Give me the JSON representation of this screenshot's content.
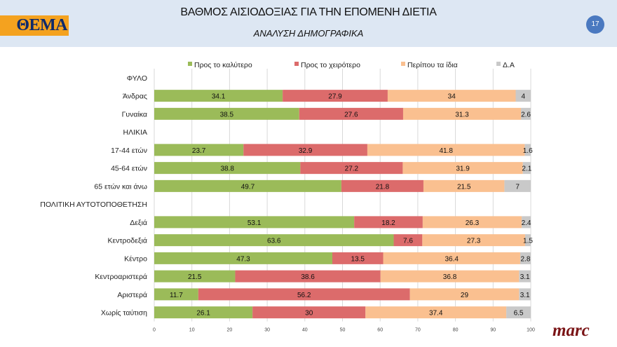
{
  "header": {
    "title": "ΒΑΘΜΟΣ ΑΙΣΙΟΔΟΞΙΑΣ ΓΙΑ ΤΗΝ ΕΠΟΜΕΝΗ ΔΙΕΤΙΑ",
    "subtitle": "ΑΝΑΛΥΣΗ ΔΗΜΟΓΡΑΦΙΚΑ",
    "logo": "ΘΕΜΑ",
    "page_number": "17",
    "brand": "marc"
  },
  "chart_data": {
    "type": "bar",
    "orientation": "horizontal",
    "stacked": true,
    "title": "ΒΑΘΜΟΣ ΑΙΣΙΟΔΟΞΙΑΣ ΓΙΑ ΤΗΝ ΕΠΟΜΕΝΗ ΔΙΕΤΙΑ",
    "xlim": [
      0,
      100
    ],
    "xticks": [
      0,
      10,
      20,
      30,
      40,
      50,
      60,
      70,
      80,
      90,
      100
    ],
    "grid": true,
    "legend_position": "top",
    "categories": [
      "ΦΥΛΟ",
      "Άνδρας",
      "Γυναίκα",
      "ΗΛΙΚΙΑ",
      "17-44 ετών",
      "45-64 ετών",
      "65 ετών και άνω",
      "ΠΟΛΙΤΙΚΗ ΑΥΤΟΤΟΠΟΘΕΤΗΣΗ",
      "Δεξιά",
      "Κεντροδεξιά",
      "Κέντρο",
      "Κεντροαριστερά",
      "Αριστερά",
      "Χωρίς ταύτιση"
    ],
    "series": [
      {
        "name": "Προς το καλύτερο",
        "color": "#9bbb59",
        "values": [
          null,
          34.1,
          38.5,
          null,
          23.7,
          38.8,
          49.7,
          null,
          53.1,
          63.6,
          47.3,
          21.5,
          11.7,
          26.1
        ]
      },
      {
        "name": "Προς το χειρότερο",
        "color": "#dc6b6b",
        "values": [
          null,
          27.9,
          27.6,
          null,
          32.9,
          27.2,
          21.8,
          null,
          18.2,
          7.6,
          13.5,
          38.6,
          56.2,
          30
        ]
      },
      {
        "name": "Περίπου τα ίδια",
        "color": "#fac090",
        "values": [
          null,
          34,
          31.3,
          null,
          41.8,
          31.9,
          21.5,
          null,
          26.3,
          27.3,
          36.4,
          36.8,
          29,
          37.4
        ]
      },
      {
        "name": "Δ.Α",
        "color": "#c9c9c9",
        "values": [
          null,
          4,
          2.6,
          null,
          1.6,
          2.1,
          7,
          null,
          2.4,
          1.5,
          2.8,
          3.1,
          3.1,
          6.5
        ]
      }
    ]
  }
}
